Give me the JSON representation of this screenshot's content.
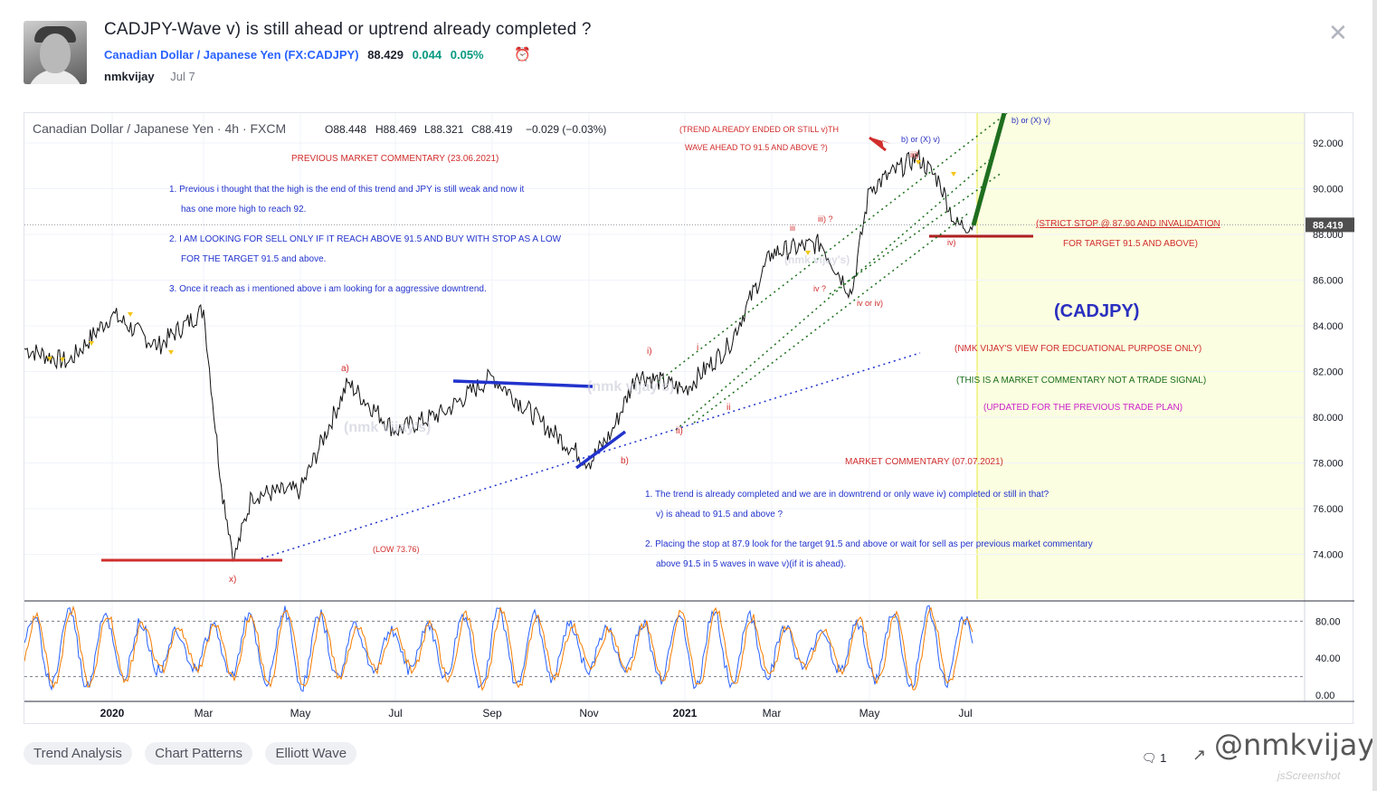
{
  "idea": {
    "title": "CADJPY-Wave v) is still ahead or uptrend already completed ?",
    "symbol_name": "Canadian Dollar / Japanese Yen",
    "symbol_code_open": " (",
    "symbol_code": "FX:CADJPY",
    "symbol_code_close": ")",
    "price": "88.429",
    "change": "0.044",
    "change_pct": "0.05%",
    "author": "nmkvijay",
    "date": "Jul 7",
    "comments_count": "1",
    "watermark": "@nmkvijay",
    "screenshot_mark": "jsScreenshot",
    "tags": [
      "Trend Analysis",
      "Chart Patterns",
      "Elliott Wave"
    ]
  },
  "colors": {
    "up": "#089981",
    "accent": "#2962ff",
    "annotation_red": "#d12d2d",
    "annotation_blue": "#2233cc",
    "annotation_green": "#1b6e1b",
    "annotation_magenta": "#cc22cc",
    "future_zone": "#fbfee0"
  },
  "chart_data": {
    "type": "line",
    "title": "Canadian Dollar / Japanese Yen · 4h · FXCM",
    "ohlc": {
      "o": "O88.448",
      "h": "H88.469",
      "l": "L88.321",
      "c": "C88.419",
      "chg": "−0.029 (−0.03%)"
    },
    "last_price_label": "88.419",
    "ylim": [
      71.5,
      94.0
    ],
    "y_ticks": [
      "74.000",
      "76.000",
      "78.000",
      "80.000",
      "82.000",
      "84.000",
      "86.000",
      "88.000",
      "90.000",
      "92.000"
    ],
    "x_ticks": [
      "2020",
      "Mar",
      "May",
      "Jul",
      "Sep",
      "Nov",
      "2021",
      "Mar",
      "May",
      "Jul"
    ],
    "series": [
      {
        "x": [
          "2019-11",
          "2019-12",
          "2020-01",
          "2020-02",
          "2020-03-01",
          "2020-03-12",
          "2020-03-20",
          "2020-04",
          "2020-05",
          "2020-06",
          "2020-07",
          "2020-08",
          "2020-09",
          "2020-10",
          "2020-11-01",
          "2020-11-15",
          "2020-12",
          "2021-01",
          "2021-02",
          "2021-03",
          "2021-04",
          "2021-04-20",
          "2021-05",
          "2021-06-01",
          "2021-06-15",
          "2021-06-25",
          "2021-07-07"
        ],
        "values": [
          83.0,
          82.4,
          84.5,
          83.1,
          84.7,
          77.0,
          73.8,
          76.6,
          76.8,
          81.5,
          79.4,
          80.2,
          81.8,
          79.8,
          78.0,
          79.3,
          81.9,
          81.2,
          83.1,
          87.2,
          87.6,
          85.4,
          90.0,
          91.4,
          90.3,
          88.4,
          88.42
        ]
      }
    ],
    "oscillator": {
      "levels": [
        "80.00",
        "40.00",
        "0.00"
      ]
    },
    "annotations": {
      "prev_title": "PREVIOUS MARKET COMMENTARY (23.06.2021)",
      "prev_1a": "1. Previous i thought that the high is the end of this trend and JPY is still weak and now it",
      "prev_1b": "has one more high to reach 92.",
      "prev_2a": "2. I AM LOOKING FOR SELL ONLY IF IT REACH ABOVE 91.5 AND BUY WITH STOP AS A LOW",
      "prev_2b": "FOR THE TARGET 91.5 and above.",
      "prev_3": "3. Once it reach as i mentioned above i am looking for a aggressive downtrend.",
      "trend_q1": "(TREND ALREADY ENDED OR STILL v)TH",
      "trend_q2": "WAVE AHEAD TO 91.5 AND ABOVE ?)",
      "stop1": "(STRICT STOP @ 87.90 AND INVALIDATION",
      "stop2": "FOR TARGET 91.5 AND ABOVE)",
      "big_symbol": "(CADJPY)",
      "view": "(NMK VIJAY'S VIEW FOR EDCUATIONAL PURPOSE ONLY)",
      "not_signal": "(THIS IS A MARKET COMMENTARY NOT A TRADE SIGNAL)",
      "updated": "(UPDATED FOR THE PREVIOUS TRADE PLAN)",
      "mc_title": "MARKET COMMENTARY (07.07.2021)",
      "mc_1a": "1. The trend is already completed and we are in downtrend or only wave iv) completed or still in that?",
      "mc_1b": "v) is ahead to 91.5 and above ?",
      "mc_2a": "2. Placing the stop at 87.9 look for the target 91.5 and above or wait for sell as per previous market commentary",
      "mc_2b": "above 91.5 in 5 waves in wave v)(if it is ahead).",
      "low_label": "(LOW 73.76)",
      "wm1": "(nmk vijay's)",
      "wm2": "(nmk vijay's)",
      "wm3": "(nmk vijay's)",
      "w_x": "x)",
      "w_a": "a)",
      "w_b": "b)",
      "w_i": "i)",
      "w_ii_paren": "ii)",
      "w_i_small": "i",
      "w_ii_small": "ii",
      "w_iii_small": "iii",
      "w_iii_q": "iii) ?",
      "w_iv_q": "iv ?",
      "w_iv_or": "iv or iv)",
      "w_iii_top": "iii)",
      "w_b_or_x": "b)  or (X)  v)",
      "w_iv_paren": "iv)",
      "w_b_or_x_v": "b) or (X) v)"
    }
  }
}
